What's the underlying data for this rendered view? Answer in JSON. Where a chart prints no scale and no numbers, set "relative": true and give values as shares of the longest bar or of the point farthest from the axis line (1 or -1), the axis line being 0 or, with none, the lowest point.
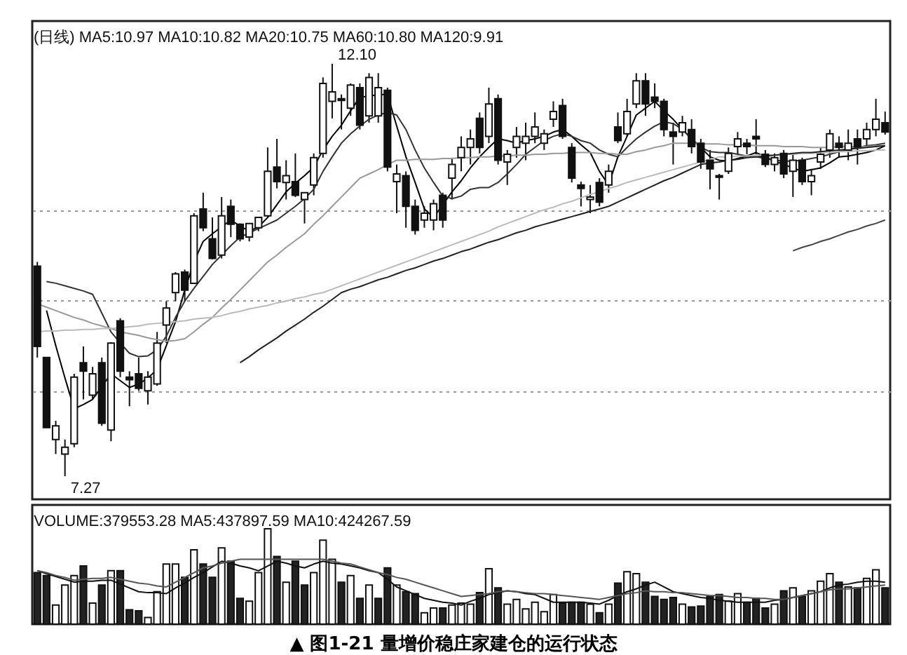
{
  "chart_data": [
    {
      "type": "candlestick",
      "title": "(日线) MA5:10.97 MA10:10.82 MA20:10.75 MA60:10.80 MA120:9.91",
      "categories": [
        null,
        null,
        null,
        null,
        null,
        null,
        null,
        null,
        null,
        null,
        null,
        null,
        null,
        null,
        null,
        null,
        null,
        null,
        null,
        null,
        null,
        null,
        null,
        null,
        null,
        null,
        null,
        null,
        null,
        null,
        null,
        null,
        null,
        null,
        null,
        null,
        null,
        null,
        null,
        null,
        null,
        null,
        null,
        null,
        null,
        null,
        null,
        null,
        null,
        null,
        null,
        null,
        null,
        null,
        null,
        null,
        null,
        null,
        null,
        null,
        null,
        null,
        null,
        null,
        null,
        null,
        null,
        null,
        null,
        null,
        null,
        null,
        null,
        null,
        null,
        null,
        null,
        null,
        null,
        null,
        null,
        null,
        null,
        null,
        null,
        null,
        null,
        null,
        null,
        null,
        null,
        null,
        null
      ],
      "ohlc": [
        [
          9.73,
          9.78,
          8.66,
          8.79
        ],
        [
          8.66,
          8.66,
          7.84,
          7.84
        ],
        [
          7.7,
          7.92,
          7.53,
          7.86
        ],
        [
          7.53,
          7.7,
          7.27,
          7.61
        ],
        [
          7.65,
          8.47,
          7.61,
          8.43
        ],
        [
          8.6,
          8.79,
          8.17,
          8.5
        ],
        [
          8.22,
          8.55,
          8.17,
          8.47
        ],
        [
          8.6,
          8.66,
          7.86,
          7.89
        ],
        [
          7.81,
          8.84,
          7.68,
          8.83
        ],
        [
          9.09,
          9.12,
          8.43,
          8.5
        ],
        [
          8.43,
          8.5,
          8.09,
          8.4
        ],
        [
          8.47,
          8.66,
          8.27,
          8.3
        ],
        [
          8.27,
          8.5,
          8.11,
          8.43
        ],
        [
          8.35,
          8.96,
          8.33,
          8.83
        ],
        [
          9.04,
          9.32,
          8.83,
          9.24
        ],
        [
          9.42,
          9.66,
          9.32,
          9.64
        ],
        [
          9.66,
          9.69,
          9.32,
          9.45
        ],
        [
          9.53,
          10.35,
          9.53,
          10.32
        ],
        [
          10.4,
          10.59,
          10.14,
          10.18
        ],
        [
          10.05,
          10.3,
          9.81,
          9.82
        ],
        [
          9.86,
          10.54,
          9.82,
          10.32
        ],
        [
          10.43,
          10.51,
          10.07,
          10.22
        ],
        [
          10.22,
          10.23,
          10.02,
          10.05
        ],
        [
          10.07,
          10.23,
          10.02,
          10.23
        ],
        [
          10.18,
          10.3,
          10.14,
          10.3
        ],
        [
          10.32,
          11.12,
          10.3,
          10.84
        ],
        [
          10.89,
          11.22,
          10.64,
          10.72
        ],
        [
          10.71,
          10.97,
          10.51,
          10.79
        ],
        [
          10.72,
          11.05,
          10.54,
          10.56
        ],
        [
          10.51,
          10.59,
          10.23,
          10.59
        ],
        [
          10.68,
          11.05,
          10.56,
          11.0
        ],
        [
          11.05,
          11.94,
          11.0,
          11.87
        ],
        [
          11.66,
          12.1,
          11.46,
          11.77
        ],
        [
          11.69,
          11.74,
          11.33,
          11.67
        ],
        [
          11.58,
          11.87,
          11.49,
          11.85
        ],
        [
          11.82,
          11.87,
          11.33,
          11.38
        ],
        [
          11.49,
          11.99,
          11.41,
          11.94
        ],
        [
          11.49,
          11.99,
          11.41,
          11.82
        ],
        [
          11.79,
          11.82,
          10.84,
          10.89
        ],
        [
          10.72,
          10.92,
          10.35,
          10.81
        ],
        [
          10.79,
          10.84,
          10.18,
          10.43
        ],
        [
          10.43,
          10.51,
          10.1,
          10.15
        ],
        [
          10.27,
          10.43,
          10.18,
          10.35
        ],
        [
          10.27,
          10.51,
          10.15,
          10.46
        ],
        [
          10.56,
          10.59,
          10.18,
          10.27
        ],
        [
          10.76,
          11.0,
          10.51,
          10.92
        ],
        [
          11.0,
          11.25,
          10.84,
          11.12
        ],
        [
          11.12,
          11.33,
          10.92,
          11.22
        ],
        [
          11.46,
          11.53,
          11.05,
          11.12
        ],
        [
          11.25,
          11.82,
          11.17,
          11.63
        ],
        [
          11.69,
          11.74,
          10.92,
          10.97
        ],
        [
          10.95,
          11.09,
          10.68,
          11.04
        ],
        [
          11.12,
          11.36,
          11.0,
          11.25
        ],
        [
          11.17,
          11.41,
          10.97,
          11.25
        ],
        [
          11.25,
          11.53,
          11.17,
          11.36
        ],
        [
          11.17,
          11.33,
          11.09,
          11.28
        ],
        [
          11.45,
          11.66,
          11.36,
          11.54
        ],
        [
          11.61,
          11.69,
          11.22,
          11.25
        ],
        [
          11.12,
          11.17,
          10.71,
          10.76
        ],
        [
          10.68,
          10.72,
          10.43,
          10.64
        ],
        [
          10.51,
          10.68,
          10.35,
          10.54
        ],
        [
          10.71,
          10.76,
          10.43,
          10.48
        ],
        [
          10.68,
          10.92,
          10.59,
          10.84
        ],
        [
          11.36,
          11.53,
          11.17,
          11.2
        ],
        [
          11.28,
          11.69,
          11.25,
          11.54
        ],
        [
          11.63,
          11.99,
          11.58,
          11.9
        ],
        [
          11.9,
          11.99,
          11.49,
          11.63
        ],
        [
          11.71,
          11.87,
          11.58,
          11.66
        ],
        [
          11.66,
          11.69,
          11.25,
          11.33
        ],
        [
          11.3,
          11.41,
          10.92,
          11.25
        ],
        [
          11.3,
          11.49,
          11.25,
          11.41
        ],
        [
          11.33,
          11.45,
          11.05,
          11.13
        ],
        [
          11.17,
          11.22,
          10.87,
          10.95
        ],
        [
          10.97,
          11.09,
          10.63,
          10.87
        ],
        [
          10.79,
          10.81,
          10.51,
          10.77
        ],
        [
          10.84,
          11.12,
          10.81,
          11.05
        ],
        [
          11.13,
          11.3,
          11.04,
          11.22
        ],
        [
          11.17,
          11.22,
          11.04,
          11.13
        ],
        [
          11.25,
          11.45,
          11.04,
          11.22
        ],
        [
          11.04,
          11.09,
          10.89,
          10.92
        ],
        [
          10.92,
          11.05,
          10.84,
          11.0
        ],
        [
          11.05,
          11.09,
          10.76,
          10.81
        ],
        [
          10.84,
          11.04,
          10.54,
          10.97
        ],
        [
          10.97,
          11.0,
          10.68,
          10.72
        ],
        [
          10.72,
          10.87,
          10.56,
          10.79
        ],
        [
          10.95,
          11.12,
          10.87,
          11.04
        ],
        [
          11.09,
          11.33,
          11.0,
          11.28
        ],
        [
          11.17,
          11.25,
          11.0,
          11.12
        ],
        [
          11.09,
          11.33,
          10.97,
          11.17
        ],
        [
          11.22,
          11.33,
          10.92,
          11.13
        ],
        [
          11.22,
          11.41,
          11.13,
          11.33
        ],
        [
          11.33,
          11.69,
          11.25,
          11.45
        ],
        [
          11.41,
          11.54,
          11.27,
          11.3
        ]
      ],
      "series": [
        {
          "type": "line",
          "color": "#000000",
          "values": [
            null,
            9.21,
            8.8,
            8.42,
            8.06,
            8.11,
            8.17,
            8.32,
            8.47,
            8.39,
            8.31,
            8.35,
            8.42,
            8.52,
            8.8,
            9.08,
            9.45,
            9.78,
            10.02,
            10.11,
            10.19,
            10.27,
            10.2,
            10.14,
            10.19,
            10.3,
            10.45,
            10.6,
            10.7,
            10.79,
            10.89,
            11.09,
            11.25,
            11.38,
            11.55,
            11.71,
            11.72,
            11.74,
            11.74,
            11.37,
            11.01,
            10.71,
            10.4,
            10.3,
            10.45,
            10.6,
            10.73,
            10.88,
            11.01,
            11.12,
            11.22,
            11.2,
            11.17,
            11.2,
            11.22,
            11.25,
            11.3,
            11.33,
            11.25,
            11.15,
            11.06,
            10.84,
            10.68,
            11.01,
            11.25,
            11.5,
            11.58,
            11.66,
            11.55,
            11.45,
            11.33,
            11.22,
            11.12,
            11.01,
            10.97,
            10.96,
            10.99,
            11.02,
            11.06,
            11.01,
            10.96,
            10.92,
            10.88,
            10.84,
            10.86,
            10.88,
            10.94,
            11.01,
            11.02,
            11.04,
            11.06,
            11.09,
            11.14
          ]
        },
        {
          "type": "line",
          "color": "#333333",
          "values": [
            null,
            9.55,
            9.53,
            9.5,
            9.47,
            9.44,
            9.4,
            9.18,
            8.96,
            8.83,
            8.71,
            8.67,
            8.68,
            8.75,
            8.91,
            9.13,
            9.32,
            9.47,
            9.61,
            9.75,
            9.86,
            9.97,
            10.07,
            10.12,
            10.17,
            10.22,
            10.27,
            10.35,
            10.43,
            10.52,
            10.63,
            10.84,
            11.01,
            11.17,
            11.28,
            11.37,
            11.45,
            11.5,
            11.53,
            11.5,
            11.33,
            11.09,
            10.88,
            10.71,
            10.55,
            10.52,
            10.55,
            10.63,
            10.65,
            10.65,
            10.71,
            10.81,
            10.92,
            11.04,
            11.12,
            11.2,
            11.25,
            11.28,
            11.25,
            11.2,
            11.17,
            11.09,
            11.04,
            11.01,
            11.12,
            11.22,
            11.3,
            11.37,
            11.42,
            11.4,
            11.33,
            11.22,
            11.12,
            11.07,
            11.06,
            11.06,
            11.04,
            11.02,
            11.01,
            10.99,
            10.97,
            10.96,
            10.96,
            10.97,
            10.99,
            11.01,
            11.04,
            11.07,
            11.1,
            11.12,
            11.14,
            11.15,
            11.17
          ]
        },
        {
          "type": "line",
          "color": "#999999",
          "values": [
            9.29,
            9.25,
            9.21,
            9.17,
            9.13,
            9.1,
            9.06,
            9.03,
            9.0,
            8.96,
            8.94,
            8.92,
            8.89,
            8.87,
            8.85,
            8.86,
            8.88,
            8.96,
            9.05,
            9.13,
            9.24,
            9.34,
            9.45,
            9.56,
            9.67,
            9.78,
            9.86,
            9.95,
            10.03,
            10.11,
            10.22,
            10.32,
            10.43,
            10.54,
            10.65,
            10.76,
            10.81,
            10.86,
            10.92,
            10.97,
            10.97,
            10.98,
            10.98,
            10.98,
            10.99,
            10.99,
            11.0,
            11.0,
            11.01,
            11.01,
            11.02,
            11.02,
            11.03,
            11.03,
            11.04,
            11.04,
            11.05,
            11.05,
            11.06,
            11.06,
            11.06,
            11.05,
            11.05,
            11.04,
            11.04,
            11.07,
            11.09,
            11.12,
            11.14,
            11.17,
            11.17,
            11.17,
            11.16,
            11.16,
            11.16,
            11.15,
            11.15,
            11.15,
            11.14,
            11.14,
            11.14,
            11.13,
            11.13,
            11.13,
            11.12,
            11.12,
            11.12,
            11.13,
            11.13,
            11.13,
            11.13,
            11.14,
            11.14
          ]
        },
        {
          "type": "line",
          "color": "#bbbbbb",
          "values": [
            8.96,
            8.97,
            8.97,
            8.98,
            8.98,
            8.99,
            8.99,
            9.0,
            9.0,
            9.01,
            9.02,
            9.03,
            9.05,
            9.06,
            9.07,
            9.08,
            9.09,
            9.11,
            9.12,
            9.13,
            9.15,
            9.18,
            9.2,
            9.23,
            9.25,
            9.27,
            9.3,
            9.32,
            9.35,
            9.37,
            9.4,
            9.42,
            9.46,
            9.5,
            9.54,
            9.58,
            9.62,
            9.66,
            9.7,
            9.74,
            9.78,
            9.82,
            9.86,
            9.9,
            9.94,
            9.98,
            10.02,
            10.06,
            10.1,
            10.14,
            10.19,
            10.23,
            10.27,
            10.31,
            10.35,
            10.39,
            10.42,
            10.46,
            10.49,
            10.53,
            10.57,
            10.6,
            10.64,
            10.67,
            10.71,
            10.74,
            10.77,
            10.8,
            10.83,
            10.86,
            10.89,
            10.92,
            10.95,
            10.98,
            11.01,
            11.01,
            11.02,
            11.02,
            11.03,
            11.03,
            11.03,
            11.04,
            11.04,
            11.05,
            11.05,
            11.06,
            11.06,
            11.07,
            11.07,
            11.08,
            11.08,
            11.09,
            11.09
          ]
        },
        {
          "type": "line",
          "color": "#222222",
          "values": [
            null,
            null,
            null,
            null,
            null,
            null,
            null,
            null,
            null,
            null,
            null,
            null,
            null,
            null,
            null,
            null,
            null,
            null,
            null,
            null,
            null,
            null,
            8.6,
            8.67,
            8.75,
            8.82,
            8.89,
            8.97,
            9.04,
            9.11,
            9.19,
            9.26,
            9.34,
            9.42,
            9.46,
            9.49,
            9.53,
            9.57,
            9.6,
            9.64,
            9.68,
            9.71,
            9.75,
            9.79,
            9.82,
            9.86,
            9.9,
            9.93,
            9.97,
            10.01,
            10.04,
            10.08,
            10.12,
            10.15,
            10.19,
            10.22,
            10.25,
            10.28,
            10.31,
            10.34,
            10.37,
            10.4,
            10.43,
            10.48,
            10.53,
            10.58,
            10.63,
            10.68,
            10.73,
            10.77,
            10.82,
            10.87,
            10.92,
            10.94,
            10.95,
            10.97,
            10.98,
            11.0,
            11.01,
            11.02,
            11.03,
            11.04,
            11.05,
            11.06,
            11.06,
            11.07,
            11.08,
            11.09,
            11.1,
            11.11,
            11.12,
            11.13,
            11.14
          ]
        },
        {
          "type": "line",
          "color": "#444444",
          "values": [
            null,
            null,
            null,
            null,
            null,
            null,
            null,
            null,
            null,
            null,
            null,
            null,
            null,
            null,
            null,
            null,
            null,
            null,
            null,
            null,
            null,
            null,
            null,
            null,
            null,
            null,
            null,
            null,
            null,
            null,
            null,
            null,
            null,
            null,
            null,
            null,
            null,
            null,
            null,
            null,
            null,
            null,
            null,
            null,
            null,
            null,
            null,
            null,
            null,
            null,
            null,
            null,
            null,
            null,
            null,
            null,
            null,
            null,
            null,
            null,
            null,
            null,
            null,
            null,
            null,
            null,
            null,
            null,
            null,
            null,
            null,
            null,
            null,
            null,
            null,
            null,
            null,
            null,
            null,
            null,
            null,
            null,
            9.91,
            9.95,
            9.98,
            10.02,
            10.05,
            10.09,
            10.13,
            10.16,
            10.2,
            10.23,
            10.27
          ]
        }
      ],
      "ylim": [
        7.0,
        12.6
      ],
      "yticks": [
        {
          "value": 8.27,
          "label": null
        },
        {
          "value": 9.33,
          "label": null
        },
        {
          "value": 10.38,
          "label": null
        }
      ],
      "grid": "y",
      "annotations": [
        "12.10",
        "7.27"
      ]
    },
    {
      "type": "bar",
      "title": "VOLUME:379553.28 MA5:437897.59 MA10:424267.59",
      "relative": true,
      "categories": [
        null,
        null,
        null,
        null,
        null,
        null,
        null,
        null,
        null,
        null,
        null,
        null,
        null,
        null,
        null,
        null,
        null,
        null,
        null,
        null,
        null,
        null,
        null,
        null,
        null,
        null,
        null,
        null,
        null,
        null,
        null,
        null,
        null,
        null,
        null,
        null,
        null,
        null,
        null,
        null,
        null,
        null,
        null,
        null,
        null,
        null,
        null,
        null,
        null,
        null,
        null,
        null,
        null,
        null,
        null,
        null,
        null,
        null,
        null,
        null,
        null,
        null,
        null,
        null,
        null,
        null,
        null,
        null,
        null,
        null,
        null,
        null,
        null,
        null,
        null,
        null,
        null,
        null,
        null,
        null,
        null,
        null,
        null,
        null,
        null,
        null,
        null,
        null,
        null,
        null,
        null,
        null,
        null
      ],
      "series": [
        {
          "type": "bar",
          "values": [
            0.54,
            0.51,
            0.2,
            0.41,
            0.51,
            0.61,
            0.22,
            0.41,
            0.56,
            0.56,
            0.15,
            0.14,
            0.07,
            0.34,
            0.63,
            0.63,
            0.49,
            0.78,
            0.63,
            0.49,
            0.8,
            0.66,
            0.27,
            0.24,
            0.54,
            1,
            0.71,
            0.44,
            0.66,
            0.41,
            0.54,
            0.88,
            0.68,
            0.44,
            0.51,
            0.27,
            0.41,
            0.27,
            0.59,
            0.41,
            0.34,
            0.32,
            0.12,
            0.17,
            0.17,
            0.2,
            0.22,
            0.21,
            0.33,
            0.58,
            0.38,
            0.21,
            0.26,
            0.16,
            0.23,
            0.13,
            0.31,
            0.22,
            0.23,
            0.23,
            0.21,
            0.12,
            0.21,
            0.43,
            0.55,
            0.53,
            0.44,
            0.29,
            0.26,
            0.28,
            0.21,
            0.18,
            0.19,
            0.29,
            0.31,
            0.24,
            0.32,
            0.23,
            0.27,
            0.17,
            0.21,
            0.35,
            0.38,
            0.29,
            0.35,
            0.45,
            0.53,
            0.44,
            0.39,
            0.38,
            0.48,
            0.57,
            0.38
          ],
          "colors": [
            "#222222",
            "#222222",
            "#ffffff",
            "#ffffff",
            "#ffffff",
            "#222222",
            "#ffffff",
            "#222222",
            "#ffffff",
            "#222222",
            "#222222",
            "#222222",
            "#ffffff",
            "#ffffff",
            "#ffffff",
            "#ffffff",
            "#222222",
            "#ffffff",
            "#222222",
            "#222222",
            "#ffffff",
            "#222222",
            "#222222",
            "#ffffff",
            "#ffffff",
            "#ffffff",
            "#222222",
            "#ffffff",
            "#222222",
            "#222222",
            "#ffffff",
            "#ffffff",
            "#ffffff",
            "#222222",
            "#ffffff",
            "#222222",
            "#ffffff",
            "#222222",
            "#222222",
            "#ffffff",
            "#222222",
            "#222222",
            "#ffffff",
            "#ffffff",
            "#222222",
            "#ffffff",
            "#ffffff",
            "#ffffff",
            "#222222",
            "#ffffff",
            "#222222",
            "#ffffff",
            "#ffffff",
            "#ffffff",
            "#ffffff",
            "#ffffff",
            "#ffffff",
            "#222222",
            "#222222",
            "#222222",
            "#ffffff",
            "#222222",
            "#ffffff",
            "#222222",
            "#ffffff",
            "#ffffff",
            "#222222",
            "#222222",
            "#222222",
            "#222222",
            "#ffffff",
            "#222222",
            "#222222",
            "#222222",
            "#222222",
            "#ffffff",
            "#ffffff",
            "#222222",
            "#222222",
            "#222222",
            "#ffffff",
            "#222222",
            "#ffffff",
            "#222222",
            "#ffffff",
            "#ffffff",
            "#ffffff",
            "#222222",
            "#ffffff",
            "#222222",
            "#ffffff",
            "#ffffff",
            "#222222"
          ]
        },
        {
          "type": "line",
          "color": "#111111",
          "values": [
            0.56,
            0.53,
            0.5,
            0.47,
            0.44,
            0.45,
            0.45,
            0.46,
            0.46,
            0.42,
            0.38,
            0.34,
            0.33,
            0.33,
            0.32,
            0.38,
            0.43,
            0.49,
            0.54,
            0.6,
            0.66,
            0.64,
            0.61,
            0.59,
            0.56,
            0.61,
            0.66,
            0.64,
            0.61,
            0.59,
            0.63,
            0.66,
            0.64,
            0.63,
            0.61,
            0.59,
            0.56,
            0.54,
            0.47,
            0.39,
            0.35,
            0.31,
            0.27,
            0.25,
            0.23,
            0.22,
            0.2,
            0.24,
            0.27,
            0.31,
            0.33,
            0.35,
            0.34,
            0.32,
            0.31,
            0.27,
            0.23,
            0.23,
            0.23,
            0.23,
            0.22,
            0.21,
            0.25,
            0.3,
            0.34,
            0.37,
            0.41,
            0.44,
            0.39,
            0.34,
            0.32,
            0.3,
            0.28,
            0.27,
            0.25,
            0.24,
            0.23,
            0.23,
            0.23,
            0.23,
            0.25,
            0.26,
            0.28,
            0.3,
            0.32,
            0.34,
            0.38,
            0.41,
            0.42,
            0.44,
            0.45,
            0.45,
            0.44
          ]
        },
        {
          "type": "line",
          "color": "#555555",
          "values": [
            0.56,
            0.54,
            0.51,
            0.49,
            0.46,
            0.47,
            0.48,
            0.48,
            0.49,
            0.47,
            0.45,
            0.43,
            0.42,
            0.4,
            0.39,
            0.44,
            0.49,
            0.54,
            0.59,
            0.61,
            0.64,
            0.66,
            0.68,
            0.68,
            0.68,
            0.68,
            0.68,
            0.68,
            0.68,
            0.68,
            0.68,
            0.68,
            0.66,
            0.64,
            0.63,
            0.6,
            0.57,
            0.54,
            0.52,
            0.49,
            0.47,
            0.44,
            0.41,
            0.38,
            0.35,
            0.32,
            0.29,
            0.3,
            0.31,
            0.32,
            0.34,
            0.35,
            0.34,
            0.33,
            0.32,
            0.32,
            0.31,
            0.3,
            0.29,
            0.28,
            0.27,
            0.26,
            0.28,
            0.3,
            0.32,
            0.33,
            0.35,
            0.34,
            0.34,
            0.33,
            0.33,
            0.32,
            0.31,
            0.3,
            0.3,
            0.29,
            0.28,
            0.28,
            0.27,
            0.27,
            0.26,
            0.26,
            0.28,
            0.3,
            0.32,
            0.34,
            0.36,
            0.37,
            0.37,
            0.38,
            0.39,
            0.4,
            0.41
          ]
        }
      ],
      "annotations": [
        "▲ 图1-21 量增价稳庄家建仓的运行状态"
      ]
    }
  ]
}
